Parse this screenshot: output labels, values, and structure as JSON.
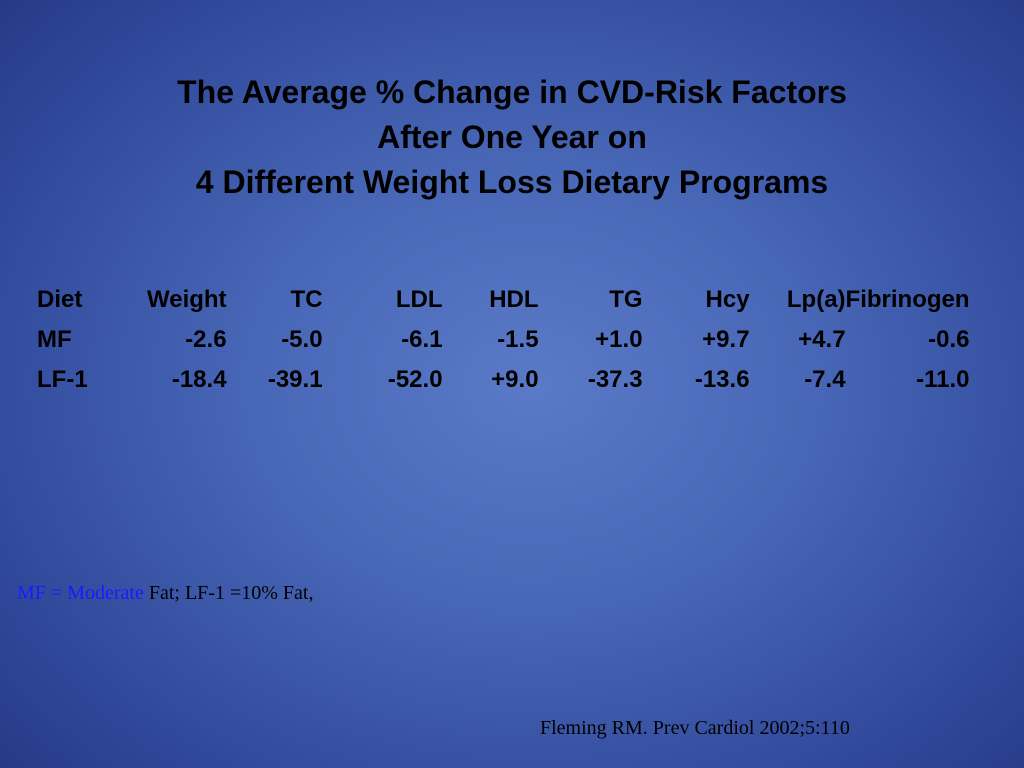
{
  "title": {
    "line1": "The Average % Change in CVD-Risk Factors",
    "line2": "After One Year on",
    "line3": "4 Different Weight Loss Dietary Programs"
  },
  "table": {
    "headers": [
      "Diet",
      "Weight",
      "TC",
      "LDL",
      "HDL",
      "TG",
      "Hcy",
      "Lp(a)",
      "Fibrinogen"
    ],
    "rows": [
      [
        "MF",
        "-2.6",
        "-5.0",
        "-6.1",
        "-1.5",
        "+1.0",
        "+9.7",
        "+4.7",
        "-0.6"
      ],
      [
        "LF-1",
        "-18.4",
        "-39.1",
        "-52.0",
        "+9.0",
        "-37.3",
        "-13.6",
        "-7.4",
        "-11.0"
      ]
    ]
  },
  "footnote": {
    "abbr_part": "MF = Moderate",
    "rest_part": " Fat; LF-1 =10% Fat,"
  },
  "citation": "Fleming RM. Prev Cardiol 2002;5:110",
  "colors": {
    "background_center": "#5a7ac8",
    "background_edge": "#1f2f7a",
    "footnote_highlight": "#1a1aff"
  }
}
